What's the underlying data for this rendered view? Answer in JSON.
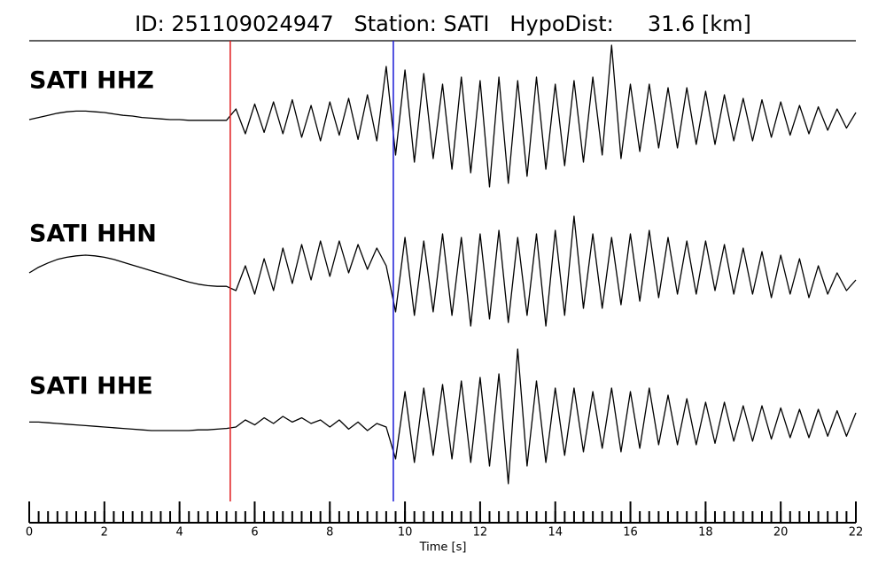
{
  "chart_data": {
    "type": "line",
    "title": "ID: 251109024947   Station: SATI   HypoDist:     31.6 [km]",
    "xlabel": "Time [s]",
    "xlim": [
      0,
      22
    ],
    "xticks": [
      0,
      2,
      4,
      6,
      8,
      10,
      12,
      14,
      16,
      18,
      20,
      22
    ],
    "minor_tick_step": 0.25,
    "label_color": "#4c9a0e",
    "markers": [
      {
        "x": 5.35,
        "color": "#e0191b"
      },
      {
        "x": 9.69,
        "color": "#1a1ad6"
      }
    ],
    "x": [
      0,
      0.25,
      0.5,
      0.75,
      1,
      1.25,
      1.5,
      1.75,
      2,
      2.25,
      2.5,
      2.75,
      3,
      3.25,
      3.5,
      3.75,
      4,
      4.25,
      4.5,
      4.75,
      5,
      5.25,
      5.5,
      5.75,
      6,
      6.25,
      6.5,
      6.75,
      7,
      7.25,
      7.5,
      7.75,
      8,
      8.25,
      8.5,
      8.75,
      9,
      9.25,
      9.5,
      9.75,
      10,
      10.25,
      10.5,
      10.75,
      11,
      11.25,
      11.5,
      11.75,
      12,
      12.25,
      12.5,
      12.75,
      13,
      13.25,
      13.5,
      13.75,
      14,
      14.25,
      14.5,
      14.75,
      15,
      15.25,
      15.5,
      15.75,
      16,
      16.25,
      16.5,
      16.75,
      17,
      17.25,
      17.5,
      17.75,
      18,
      18.25,
      18.5,
      18.75,
      19,
      19.25,
      19.5,
      19.75,
      20,
      20.25,
      20.5,
      20.75,
      21,
      21.25,
      21.5,
      21.75,
      22
    ],
    "series": [
      {
        "name": "SATI HHZ",
        "color": "#000000",
        "values": [
          0,
          0.03,
          0.06,
          0.09,
          0.11,
          0.12,
          0.12,
          0.11,
          0.1,
          0.08,
          0.06,
          0.05,
          0.03,
          0.02,
          0.01,
          0,
          0,
          -0.01,
          -0.01,
          -0.01,
          -0.01,
          -0.01,
          0.15,
          -0.2,
          0.22,
          -0.18,
          0.25,
          -0.2,
          0.28,
          -0.25,
          0.2,
          -0.3,
          0.25,
          -0.22,
          0.3,
          -0.28,
          0.35,
          -0.3,
          0.75,
          -0.5,
          0.7,
          -0.6,
          0.65,
          -0.55,
          0.5,
          -0.7,
          0.6,
          -0.75,
          0.55,
          -0.95,
          0.6,
          -0.9,
          0.55,
          -0.8,
          0.6,
          -0.7,
          0.5,
          -0.65,
          0.55,
          -0.6,
          0.6,
          -0.5,
          1.05,
          -0.55,
          0.5,
          -0.45,
          0.5,
          -0.4,
          0.45,
          -0.4,
          0.45,
          -0.35,
          0.4,
          -0.35,
          0.35,
          -0.3,
          0.3,
          -0.3,
          0.28,
          -0.25,
          0.25,
          -0.22,
          0.2,
          -0.2,
          0.18,
          -0.15,
          0.15,
          -0.12,
          0.1
        ]
      },
      {
        "name": "SATI HHN",
        "color": "#000000",
        "values": [
          0,
          0.08,
          0.14,
          0.19,
          0.22,
          0.24,
          0.25,
          0.24,
          0.22,
          0.19,
          0.15,
          0.11,
          0.07,
          0.03,
          -0.01,
          -0.05,
          -0.09,
          -0.13,
          -0.16,
          -0.18,
          -0.19,
          -0.19,
          -0.25,
          0.1,
          -0.3,
          0.2,
          -0.25,
          0.35,
          -0.15,
          0.4,
          -0.1,
          0.45,
          -0.05,
          0.45,
          0,
          0.4,
          0.05,
          0.35,
          0.1,
          -0.55,
          0.5,
          -0.6,
          0.45,
          -0.55,
          0.55,
          -0.6,
          0.5,
          -0.75,
          0.55,
          -0.65,
          0.6,
          -0.7,
          0.5,
          -0.6,
          0.55,
          -0.75,
          0.6,
          -0.6,
          0.8,
          -0.5,
          0.55,
          -0.5,
          0.5,
          -0.45,
          0.55,
          -0.4,
          0.6,
          -0.35,
          0.5,
          -0.3,
          0.45,
          -0.3,
          0.45,
          -0.25,
          0.4,
          -0.3,
          0.35,
          -0.3,
          0.3,
          -0.35,
          0.25,
          -0.3,
          0.2,
          -0.35,
          0.1,
          -0.3,
          0.0,
          -0.25,
          -0.1
        ]
      },
      {
        "name": "SATI HHE",
        "color": "#000000",
        "values": [
          0.02,
          0.02,
          0.01,
          0,
          -0.01,
          -0.02,
          -0.03,
          -0.04,
          -0.05,
          -0.06,
          -0.07,
          -0.08,
          -0.09,
          -0.1,
          -0.1,
          -0.1,
          -0.1,
          -0.1,
          -0.09,
          -0.09,
          -0.08,
          -0.07,
          -0.05,
          0.05,
          -0.02,
          0.08,
          0,
          0.1,
          0.02,
          0.08,
          0,
          0.05,
          -0.05,
          0.05,
          -0.08,
          0.02,
          -0.1,
          0,
          -0.05,
          -0.5,
          0.45,
          -0.55,
          0.5,
          -0.45,
          0.55,
          -0.5,
          0.6,
          -0.55,
          0.65,
          -0.6,
          0.7,
          -0.85,
          1.05,
          -0.6,
          0.6,
          -0.55,
          0.5,
          -0.45,
          0.5,
          -0.4,
          0.45,
          -0.35,
          0.5,
          -0.4,
          0.45,
          -0.35,
          0.5,
          -0.3,
          0.4,
          -0.3,
          0.35,
          -0.3,
          0.3,
          -0.28,
          0.3,
          -0.25,
          0.25,
          -0.25,
          0.25,
          -0.22,
          0.22,
          -0.2,
          0.2,
          -0.2,
          0.2,
          -0.18,
          0.18,
          -0.18,
          0.15
        ]
      }
    ]
  }
}
